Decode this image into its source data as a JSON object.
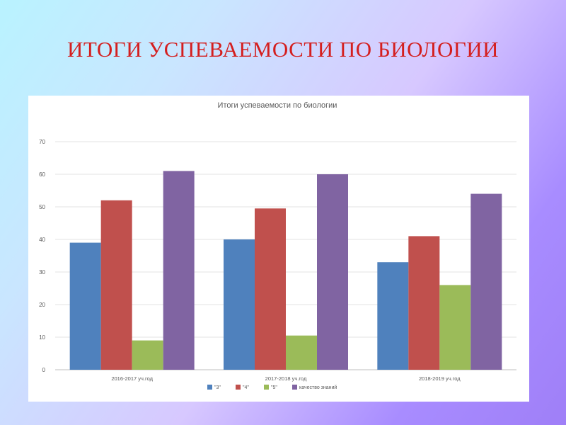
{
  "slide": {
    "title": "ИТОГИ УСПЕВАЕМОСТИ ПО БИОЛОГИИ"
  },
  "chart_data": {
    "type": "bar",
    "title": "Итоги успеваемости по биологии",
    "categories": [
      "2016-2017 уч.год",
      "2017-2018 уч.год",
      "2018-2019 уч.год"
    ],
    "series": [
      {
        "name": "\"3\"",
        "color": "#4f81bd",
        "values": [
          39,
          40,
          33
        ]
      },
      {
        "name": "\"4\"",
        "color": "#c0504d",
        "values": [
          52,
          49.5,
          41
        ]
      },
      {
        "name": "\"5\"",
        "color": "#9bbb59",
        "values": [
          9,
          10.5,
          26
        ]
      },
      {
        "name": "качество знаний",
        "color": "#8064a2",
        "values": [
          61,
          60,
          54
        ]
      }
    ],
    "ylim": [
      0,
      70
    ],
    "yticks": [
      0,
      10,
      20,
      30,
      40,
      50,
      60,
      70
    ],
    "grid": true,
    "legend": "bottom"
  }
}
